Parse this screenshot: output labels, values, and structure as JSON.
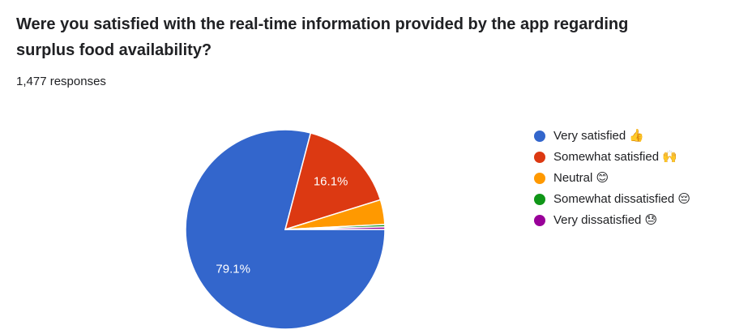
{
  "chart_data": {
    "type": "pie",
    "title": "Were you satisfied with the real-time information provided by the app regarding surplus food availability?",
    "subtitle": "1,477 responses",
    "categories": [
      "Very satisfied 👍",
      "Somewhat satisfied 🙌",
      "Neutral 😊",
      "Somewhat dissatisfied 😔",
      "Very dissatisfied 😓"
    ],
    "values": [
      79.1,
      16.1,
      4.0,
      0.4,
      0.4
    ],
    "value_labels": [
      "79.1%",
      "16.1%",
      null,
      null,
      null
    ],
    "colors": [
      "#3366cc",
      "#dc3912",
      "#ff9900",
      "#109618",
      "#990099"
    ],
    "legend": "right"
  }
}
